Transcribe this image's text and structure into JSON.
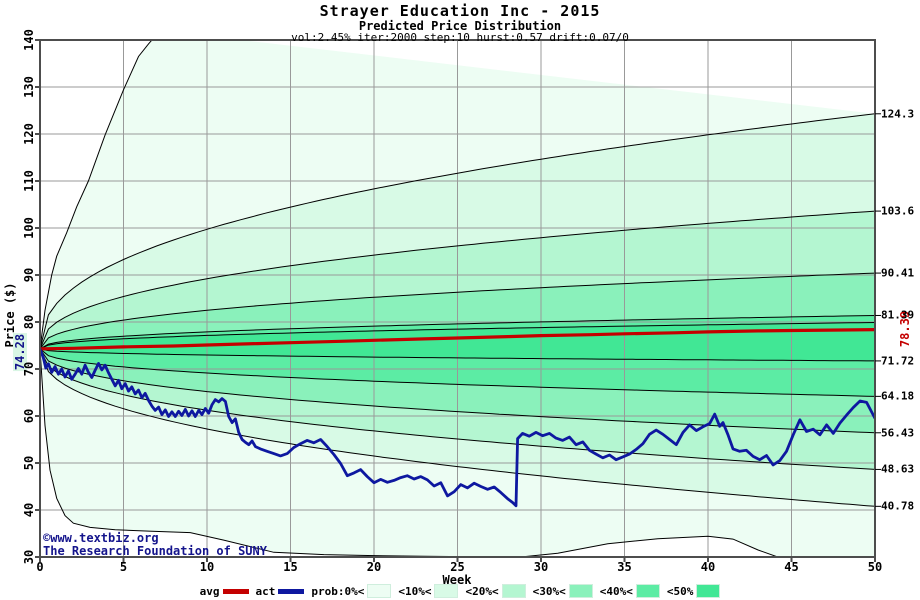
{
  "header": {
    "title": "Strayer Education Inc - 2015",
    "subtitle": "Predicted Price Distribution",
    "params": "vol:2.45% iter:2000 step:10 hurst:0.57 drift:0.07/0"
  },
  "copyright": {
    "line1": "©www.textbiz.org",
    "line2": "The Research Foundation of SUNY"
  },
  "chart_data": {
    "type": "fan-line",
    "title": "Strayer Education Inc - 2015",
    "subtitle": "Predicted Price Distribution",
    "xlabel": "Week",
    "ylabel": "Price ($)",
    "xlim": [
      0,
      50
    ],
    "ylim": [
      30,
      140
    ],
    "xticks": [
      0,
      5,
      10,
      15,
      20,
      25,
      30,
      35,
      40,
      45,
      50
    ],
    "yticks": [
      30,
      40,
      50,
      60,
      70,
      80,
      90,
      100,
      110,
      120,
      130,
      140
    ],
    "grid": true,
    "start_value": 74.28,
    "start_label": "74.28",
    "colors": {
      "avg": "#c40000",
      "act": "#0e18a0",
      "grid": "#999999",
      "border": "#4d4d4d",
      "boundary": "#000000",
      "bands": [
        "#edfdf3",
        "#d8fae6",
        "#b4f6d1",
        "#8af1bb",
        "#5ceca4",
        "#41e795"
      ]
    },
    "bands": {
      "exponent": 0.42,
      "upper_ends": [
        124.3,
        103.6,
        90.41,
        81.39,
        79.9
      ],
      "lower_ends": [
        71.72,
        64.18,
        56.43,
        48.63,
        40.78
      ],
      "right_labels": [
        {
          "value": 124.3,
          "label": "124.3"
        },
        {
          "value": 103.6,
          "label": "103.6"
        },
        {
          "value": 90.41,
          "label": "90.41"
        },
        {
          "value": 81.39,
          "label": "81.39"
        },
        {
          "value": 71.72,
          "label": "71.72"
        },
        {
          "value": 64.18,
          "label": "64.18"
        },
        {
          "value": 56.43,
          "label": "56.43"
        },
        {
          "value": 48.63,
          "label": "48.63"
        },
        {
          "value": 40.78,
          "label": "40.78"
        }
      ],
      "outer_max_points": [
        [
          0,
          74.28
        ],
        [
          0.3,
          82.5
        ],
        [
          0.7,
          90
        ],
        [
          1,
          94
        ],
        [
          1.6,
          99
        ],
        [
          2.2,
          104.5
        ],
        [
          2.9,
          110
        ],
        [
          3.9,
          119.8
        ],
        [
          5,
          129.4
        ],
        [
          5.9,
          136.5
        ],
        [
          6.5,
          139.2
        ],
        [
          7.2,
          142
        ]
      ],
      "outer_min_points": [
        [
          0,
          74.28
        ],
        [
          0.3,
          58
        ],
        [
          0.6,
          48.5
        ],
        [
          1,
          42.5
        ],
        [
          1.5,
          38.8
        ],
        [
          2,
          37.2
        ],
        [
          3,
          36.3
        ],
        [
          4.5,
          35.8
        ],
        [
          6.5,
          35.5
        ],
        [
          9,
          35.2
        ],
        [
          11,
          33.6
        ],
        [
          14,
          31
        ],
        [
          17,
          30.5
        ],
        [
          20,
          30.3
        ],
        [
          23,
          30.15
        ],
        [
          26,
          30.05
        ],
        [
          28.5,
          29.9
        ],
        [
          31,
          30.8
        ],
        [
          34,
          32.8
        ],
        [
          37,
          33.9
        ],
        [
          40,
          34.4
        ],
        [
          41.5,
          33.8
        ],
        [
          43,
          31.5
        ],
        [
          44.5,
          29.6
        ],
        [
          50,
          29.3
        ]
      ]
    },
    "avg": {
      "name": "avg",
      "end_label": "78.39",
      "end_value": 78.39,
      "points": [
        [
          0,
          74.28
        ],
        [
          2,
          74.4
        ],
        [
          5,
          74.7
        ],
        [
          8,
          74.9
        ],
        [
          10,
          75.1
        ],
        [
          13,
          75.4
        ],
        [
          15,
          75.6
        ],
        [
          18,
          75.9
        ],
        [
          20,
          76.1
        ],
        [
          23,
          76.4
        ],
        [
          25,
          76.6
        ],
        [
          28,
          76.9
        ],
        [
          30,
          77.1
        ],
        [
          33,
          77.3
        ],
        [
          35,
          77.5
        ],
        [
          38,
          77.7
        ],
        [
          40,
          77.9
        ],
        [
          43,
          78.1
        ],
        [
          45,
          78.2
        ],
        [
          48,
          78.3
        ],
        [
          50,
          78.39
        ]
      ]
    },
    "act": {
      "name": "act",
      "points": [
        [
          0,
          74.28
        ],
        [
          0.2,
          72.4
        ],
        [
          0.35,
          70.2
        ],
        [
          0.5,
          71.1
        ],
        [
          0.7,
          69.3
        ],
        [
          0.9,
          70.5
        ],
        [
          1.1,
          68.9
        ],
        [
          1.3,
          70.0
        ],
        [
          1.5,
          68.3
        ],
        [
          1.7,
          69.6
        ],
        [
          1.9,
          67.8
        ],
        [
          2.1,
          68.9
        ],
        [
          2.3,
          70.1
        ],
        [
          2.5,
          68.9
        ],
        [
          2.7,
          70.8
        ],
        [
          2.9,
          69.3
        ],
        [
          3.1,
          68.2
        ],
        [
          3.3,
          69.7
        ],
        [
          3.5,
          71.2
        ],
        [
          3.7,
          69.8
        ],
        [
          3.9,
          70.8
        ],
        [
          4.1,
          69.2
        ],
        [
          4.3,
          67.8
        ],
        [
          4.5,
          66.4
        ],
        [
          4.7,
          67.6
        ],
        [
          4.9,
          65.8
        ],
        [
          5.1,
          66.9
        ],
        [
          5.3,
          65.3
        ],
        [
          5.5,
          66.2
        ],
        [
          5.7,
          64.7
        ],
        [
          5.9,
          65.5
        ],
        [
          6.1,
          63.9
        ],
        [
          6.3,
          64.8
        ],
        [
          6.5,
          63.3
        ],
        [
          6.7,
          62.1
        ],
        [
          6.9,
          61.2
        ],
        [
          7.1,
          61.9
        ],
        [
          7.3,
          60.3
        ],
        [
          7.5,
          61.3
        ],
        [
          7.7,
          59.9
        ],
        [
          7.9,
          60.9
        ],
        [
          8.1,
          59.9
        ],
        [
          8.3,
          61.0
        ],
        [
          8.5,
          60.1
        ],
        [
          8.7,
          61.4
        ],
        [
          8.9,
          60.0
        ],
        [
          9.1,
          61.1
        ],
        [
          9.3,
          59.9
        ],
        [
          9.5,
          61.2
        ],
        [
          9.7,
          60.3
        ],
        [
          9.9,
          61.6
        ],
        [
          10.1,
          60.6
        ],
        [
          10.3,
          62.4
        ],
        [
          10.5,
          63.5
        ],
        [
          10.7,
          63.0
        ],
        [
          10.9,
          63.7
        ],
        [
          11.1,
          63.1
        ],
        [
          11.3,
          59.9
        ],
        [
          11.5,
          58.6
        ],
        [
          11.7,
          59.4
        ],
        [
          11.9,
          56.5
        ],
        [
          12.1,
          55.0
        ],
        [
          12.3,
          54.4
        ],
        [
          12.5,
          53.9
        ],
        [
          12.7,
          54.7
        ],
        [
          12.9,
          53.5
        ],
        [
          13.2,
          53.0
        ],
        [
          13.6,
          52.5
        ],
        [
          14.0,
          52.0
        ],
        [
          14.4,
          51.5
        ],
        [
          14.8,
          52.0
        ],
        [
          15.2,
          53.3
        ],
        [
          15.6,
          54.1
        ],
        [
          16.0,
          54.8
        ],
        [
          16.4,
          54.3
        ],
        [
          16.8,
          55.0
        ],
        [
          17.2,
          53.5
        ],
        [
          17.6,
          51.8
        ],
        [
          18.0,
          49.9
        ],
        [
          18.4,
          47.3
        ],
        [
          18.8,
          47.9
        ],
        [
          19.2,
          48.6
        ],
        [
          19.6,
          47.1
        ],
        [
          20.0,
          45.8
        ],
        [
          20.4,
          46.5
        ],
        [
          20.8,
          45.9
        ],
        [
          21.2,
          46.3
        ],
        [
          21.6,
          46.9
        ],
        [
          22.0,
          47.3
        ],
        [
          22.4,
          46.6
        ],
        [
          22.8,
          47.1
        ],
        [
          23.2,
          46.4
        ],
        [
          23.6,
          45.1
        ],
        [
          24.0,
          45.8
        ],
        [
          24.4,
          43.0
        ],
        [
          24.8,
          43.9
        ],
        [
          25.2,
          45.4
        ],
        [
          25.6,
          44.7
        ],
        [
          26.0,
          45.7
        ],
        [
          26.4,
          45.0
        ],
        [
          26.8,
          44.4
        ],
        [
          27.2,
          44.9
        ],
        [
          27.6,
          43.7
        ],
        [
          28.0,
          42.4
        ],
        [
          28.3,
          41.6
        ],
        [
          28.5,
          40.9
        ],
        [
          28.6,
          55.2
        ],
        [
          28.9,
          56.3
        ],
        [
          29.3,
          55.7
        ],
        [
          29.7,
          56.5
        ],
        [
          30.1,
          55.8
        ],
        [
          30.5,
          56.3
        ],
        [
          30.9,
          55.3
        ],
        [
          31.3,
          54.8
        ],
        [
          31.7,
          55.5
        ],
        [
          32.1,
          53.9
        ],
        [
          32.5,
          54.5
        ],
        [
          32.9,
          52.7
        ],
        [
          33.3,
          51.9
        ],
        [
          33.7,
          51.1
        ],
        [
          34.1,
          51.7
        ],
        [
          34.5,
          50.7
        ],
        [
          34.9,
          51.3
        ],
        [
          35.3,
          51.9
        ],
        [
          35.7,
          52.9
        ],
        [
          36.1,
          54.1
        ],
        [
          36.5,
          56.1
        ],
        [
          36.9,
          57.0
        ],
        [
          37.3,
          56.1
        ],
        [
          37.7,
          55.0
        ],
        [
          38.1,
          53.9
        ],
        [
          38.5,
          56.5
        ],
        [
          38.9,
          58.1
        ],
        [
          39.3,
          56.9
        ],
        [
          39.7,
          57.7
        ],
        [
          40.1,
          58.4
        ],
        [
          40.4,
          60.4
        ],
        [
          40.7,
          57.8
        ],
        [
          40.9,
          58.6
        ],
        [
          41.2,
          56.0
        ],
        [
          41.5,
          53.0
        ],
        [
          41.9,
          52.5
        ],
        [
          42.3,
          52.7
        ],
        [
          42.7,
          51.4
        ],
        [
          43.1,
          50.7
        ],
        [
          43.5,
          51.6
        ],
        [
          43.9,
          49.6
        ],
        [
          44.3,
          50.5
        ],
        [
          44.7,
          52.5
        ],
        [
          45.1,
          56.0
        ],
        [
          45.5,
          59.2
        ],
        [
          45.9,
          56.7
        ],
        [
          46.3,
          57.2
        ],
        [
          46.7,
          56.0
        ],
        [
          47.1,
          58.1
        ],
        [
          47.5,
          56.3
        ],
        [
          47.9,
          58.5
        ],
        [
          48.3,
          60.2
        ],
        [
          48.7,
          61.8
        ],
        [
          49.1,
          63.2
        ],
        [
          49.5,
          62.9
        ],
        [
          50,
          59.5
        ]
      ]
    },
    "legend": [
      {
        "label": "avg",
        "swatch": "line",
        "color": "#c40000"
      },
      {
        "label": "act",
        "swatch": "line",
        "color": "#0e18a0"
      },
      {
        "label": "prob:0%<",
        "swatch": "box",
        "color": "#edfdf3"
      },
      {
        "label": "<10%<",
        "swatch": "box",
        "color": "#d8fae6"
      },
      {
        "label": "<20%<",
        "swatch": "box",
        "color": "#b4f6d1"
      },
      {
        "label": "<30%<",
        "swatch": "box",
        "color": "#8af1bb"
      },
      {
        "label": "<40%<",
        "swatch": "box",
        "color": "#5ceca4"
      },
      {
        "label": "<50%",
        "swatch": "box",
        "color": "#41e795"
      }
    ]
  }
}
